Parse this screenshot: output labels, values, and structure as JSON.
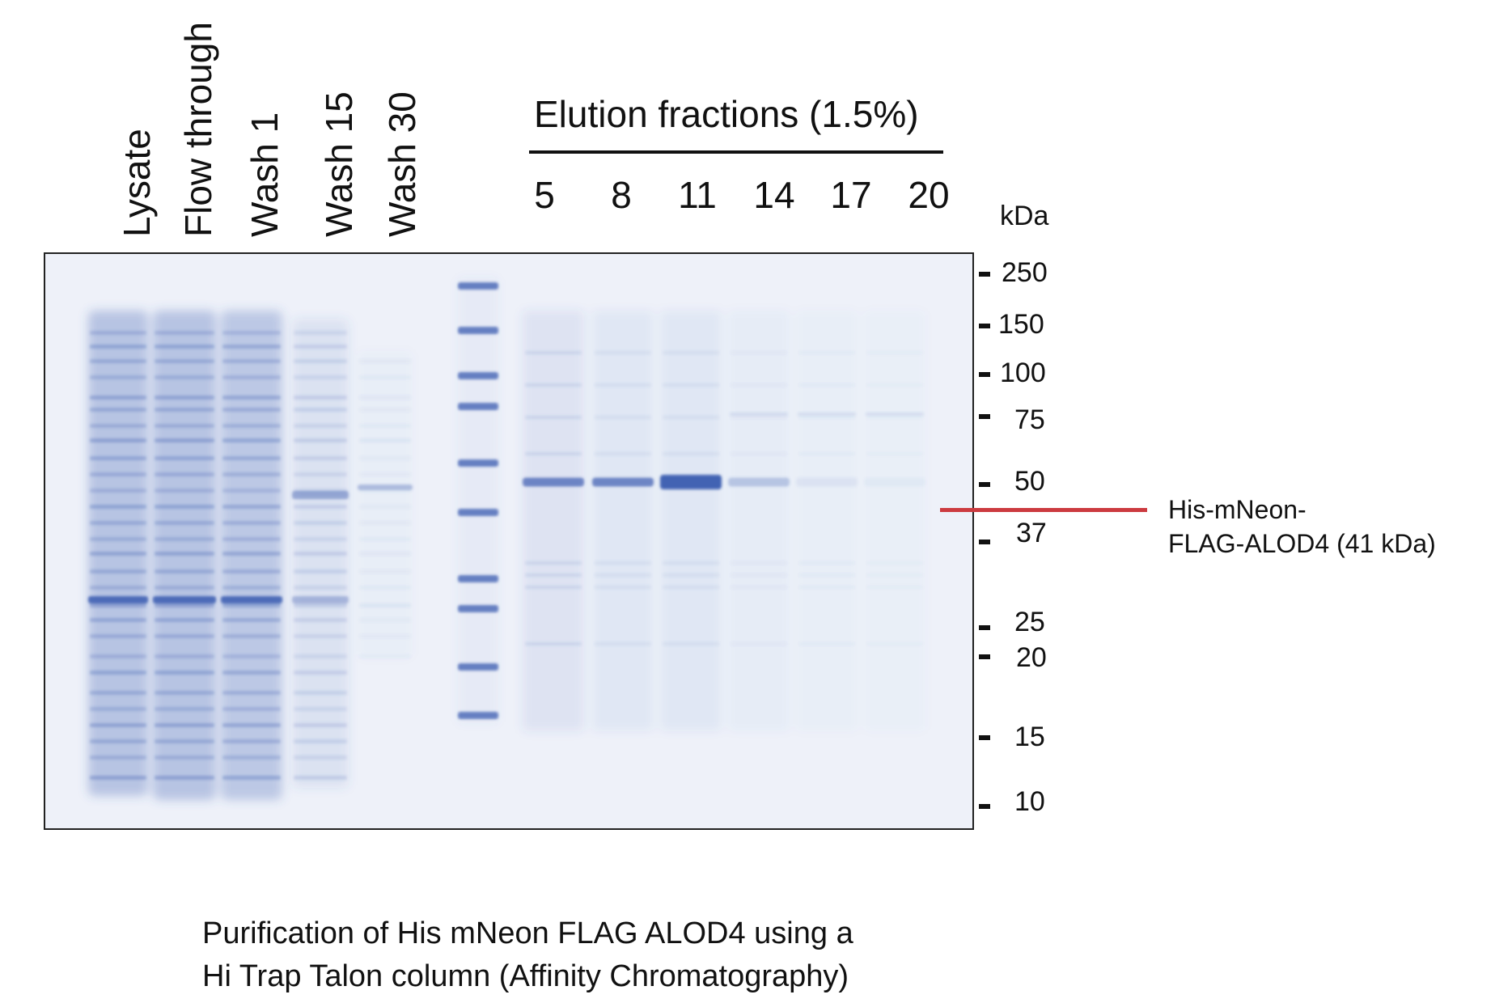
{
  "lanes": {
    "lysate": "Lysate",
    "flow_through": "Flow through",
    "wash1": "Wash 1",
    "wash15": "Wash 15",
    "wash30": "Wash 30"
  },
  "elution": {
    "title": "Elution fractions (1.5%)",
    "fractions": [
      "5",
      "8",
      "11",
      "14",
      "17",
      "20"
    ]
  },
  "marker": {
    "unit": "kDa",
    "sizes": [
      "250",
      "150",
      "100",
      "75",
      "50",
      "37",
      "25",
      "20",
      "15",
      "10"
    ]
  },
  "target": {
    "line1": "His-mNeon-",
    "line2": "FLAG-ALOD4 (41 kDa)",
    "line_color": "#cc3b40"
  },
  "caption": {
    "line1": "Purification of His mNeon FLAG ALOD4 using a",
    "line2": "Hi Trap Talon column (Affinity Chromatography)"
  },
  "colors": {
    "gel_background": "#eef1f9",
    "stain": "#3a5cb0"
  }
}
